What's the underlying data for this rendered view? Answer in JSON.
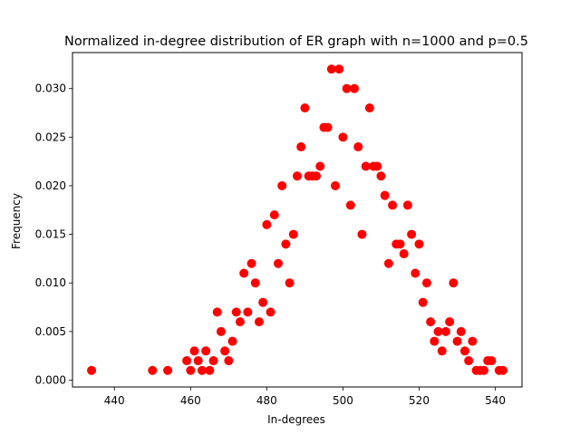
{
  "chart_data": {
    "type": "scatter",
    "title": "Normalized in-degree distribution of ER graph with n=1000 and p=0.5",
    "xlabel": "In-degrees",
    "ylabel": "Frequency",
    "xlim": [
      429,
      547
    ],
    "ylim": [
      -0.0007,
      0.0337
    ],
    "x_ticks": [
      440,
      460,
      480,
      500,
      520,
      540
    ],
    "y_ticks": [
      0.0,
      0.005,
      0.01,
      0.015,
      0.02,
      0.025,
      0.03
    ],
    "x_tick_labels": [
      "440",
      "460",
      "480",
      "500",
      "520",
      "540"
    ],
    "y_tick_labels": [
      "0.000",
      "0.005",
      "0.010",
      "0.015",
      "0.020",
      "0.025",
      "0.030"
    ],
    "grid": false,
    "marker_color": "#ff0000",
    "points": [
      [
        434,
        0.001
      ],
      [
        450,
        0.001
      ],
      [
        454,
        0.001
      ],
      [
        459,
        0.002
      ],
      [
        460,
        0.001
      ],
      [
        461,
        0.003
      ],
      [
        462,
        0.002
      ],
      [
        463,
        0.001
      ],
      [
        464,
        0.003
      ],
      [
        465,
        0.001
      ],
      [
        466,
        0.002
      ],
      [
        467,
        0.007
      ],
      [
        468,
        0.005
      ],
      [
        469,
        0.003
      ],
      [
        470,
        0.002
      ],
      [
        471,
        0.004
      ],
      [
        472,
        0.007
      ],
      [
        473,
        0.006
      ],
      [
        474,
        0.011
      ],
      [
        475,
        0.007
      ],
      [
        476,
        0.012
      ],
      [
        477,
        0.01
      ],
      [
        478,
        0.006
      ],
      [
        479,
        0.008
      ],
      [
        480,
        0.016
      ],
      [
        481,
        0.007
      ],
      [
        482,
        0.017
      ],
      [
        483,
        0.012
      ],
      [
        484,
        0.02
      ],
      [
        485,
        0.014
      ],
      [
        486,
        0.01
      ],
      [
        487,
        0.015
      ],
      [
        488,
        0.021
      ],
      [
        489,
        0.024
      ],
      [
        490,
        0.028
      ],
      [
        491,
        0.021
      ],
      [
        492,
        0.021
      ],
      [
        493,
        0.021
      ],
      [
        494,
        0.022
      ],
      [
        495,
        0.026
      ],
      [
        496,
        0.026
      ],
      [
        497,
        0.032
      ],
      [
        498,
        0.02
      ],
      [
        499,
        0.032
      ],
      [
        500,
        0.025
      ],
      [
        501,
        0.03
      ],
      [
        502,
        0.018
      ],
      [
        503,
        0.03
      ],
      [
        504,
        0.024
      ],
      [
        505,
        0.015
      ],
      [
        506,
        0.022
      ],
      [
        507,
        0.028
      ],
      [
        508,
        0.022
      ],
      [
        509,
        0.022
      ],
      [
        510,
        0.021
      ],
      [
        511,
        0.019
      ],
      [
        512,
        0.012
      ],
      [
        513,
        0.018
      ],
      [
        514,
        0.014
      ],
      [
        515,
        0.014
      ],
      [
        516,
        0.013
      ],
      [
        517,
        0.018
      ],
      [
        518,
        0.015
      ],
      [
        519,
        0.011
      ],
      [
        520,
        0.014
      ],
      [
        521,
        0.008
      ],
      [
        522,
        0.01
      ],
      [
        523,
        0.006
      ],
      [
        524,
        0.004
      ],
      [
        525,
        0.005
      ],
      [
        526,
        0.003
      ],
      [
        527,
        0.005
      ],
      [
        528,
        0.006
      ],
      [
        529,
        0.01
      ],
      [
        530,
        0.004
      ],
      [
        531,
        0.005
      ],
      [
        532,
        0.003
      ],
      [
        533,
        0.002
      ],
      [
        534,
        0.004
      ],
      [
        535,
        0.001
      ],
      [
        536,
        0.001
      ],
      [
        537,
        0.001
      ],
      [
        538,
        0.002
      ],
      [
        539,
        0.002
      ],
      [
        541,
        0.001
      ],
      [
        542,
        0.001
      ]
    ]
  }
}
